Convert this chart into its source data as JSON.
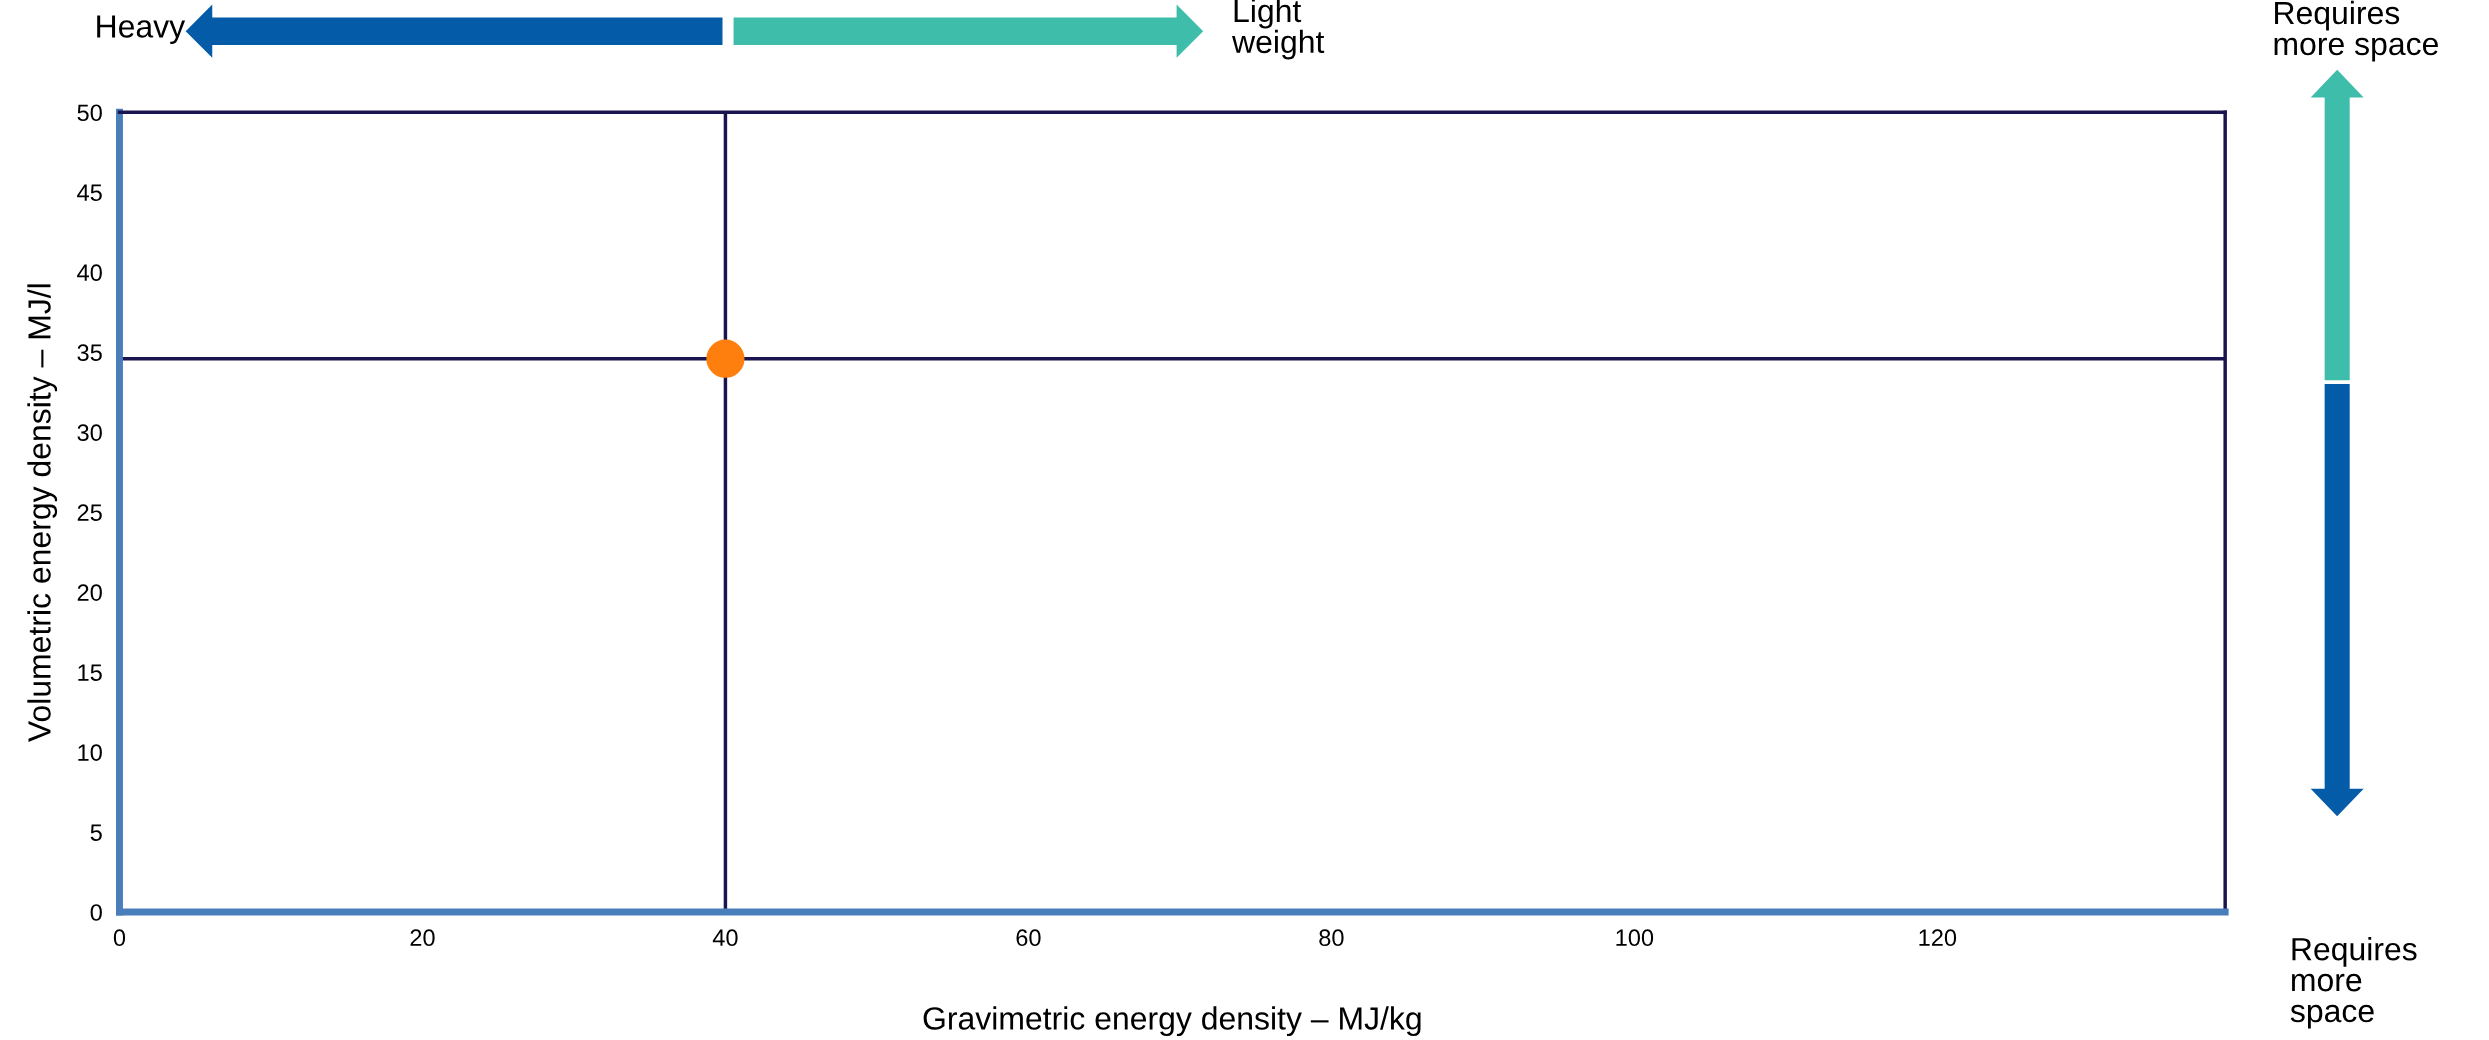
{
  "chart_data": {
    "type": "scatter",
    "xlabel": "Gravimetric energy density – MJ/kg",
    "ylabel": "Volumetric energy density – MJ/l",
    "x": [
      40
    ],
    "series": [
      {
        "color": "#ff7f0e",
        "values": [
          34.6
        ]
      }
    ],
    "marker": "circle",
    "xlim": [
      0,
      139
    ],
    "xticks": [
      0,
      20,
      40,
      60,
      80,
      100,
      120
    ],
    "ylim": [
      0,
      50
    ],
    "yticks": [
      0,
      5,
      10,
      15,
      20,
      25,
      30,
      35,
      40,
      45,
      50
    ],
    "ref_lines": [
      {
        "axis": "x",
        "value": 40,
        "color": "#1a1450"
      },
      {
        "axis": "y",
        "value": 34.6,
        "color": "#1a1450"
      }
    ],
    "annotations": [
      "Heavy",
      "Light\nweight",
      "Requires\nmore space",
      "Requires\nmore\nspace"
    ],
    "grid": false,
    "legend": false
  }
}
